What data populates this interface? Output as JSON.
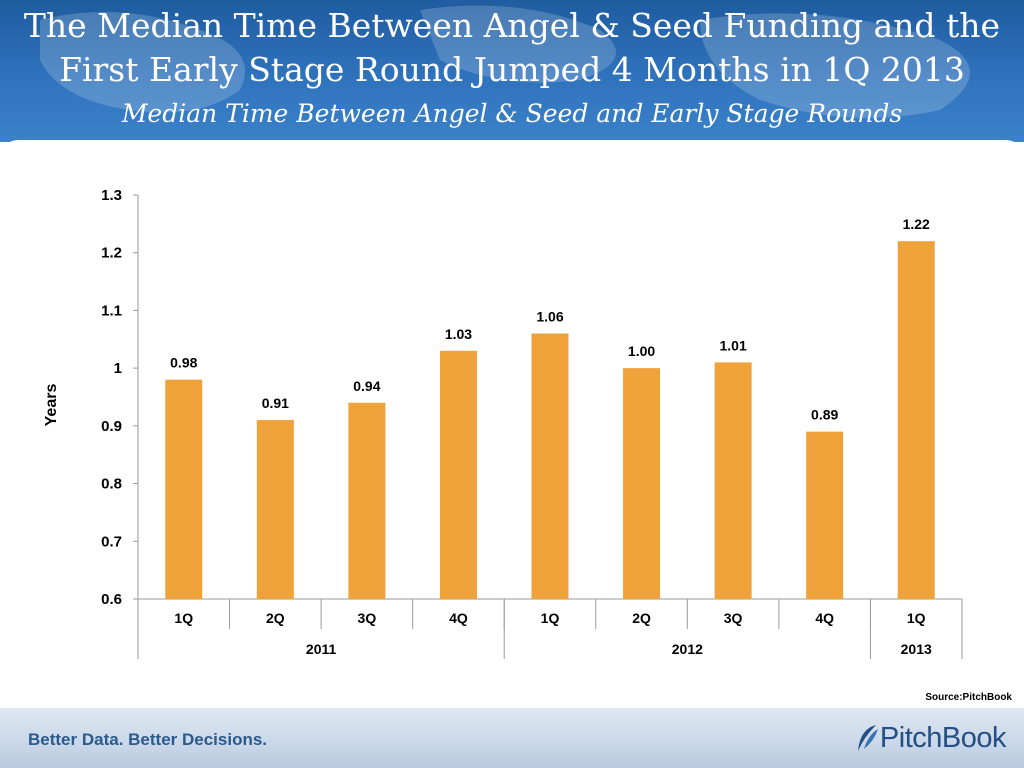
{
  "header": {
    "title_line1": "The Median Time Between Angel & Seed Funding and the",
    "title_line2": "First Early Stage Round Jumped 4 Months in 1Q 2013",
    "subtitle": "Median Time Between Angel & Seed and Early Stage Rounds"
  },
  "source": "Source:PitchBook",
  "footer": {
    "tagline": "Better Data. Better Decisions.",
    "logo_text": "PitchBook"
  },
  "colors": {
    "bar": "#f0a23a",
    "header": "#2f73bd"
  },
  "chart_data": {
    "type": "bar",
    "title": "Median Time Between Angel & Seed and Early Stage Rounds",
    "ylabel": "Years",
    "xlabel": "",
    "ylim": [
      0.6,
      1.3
    ],
    "yticks": [
      0.6,
      0.7,
      0.8,
      0.9,
      1,
      1.1,
      1.2,
      1.3
    ],
    "ytick_labels": [
      "0.6",
      "0.7",
      "0.8",
      "0.9",
      "1",
      "1.1",
      "1.2",
      "1.3"
    ],
    "categories": [
      "1Q",
      "2Q",
      "3Q",
      "4Q",
      "1Q",
      "2Q",
      "3Q",
      "4Q",
      "1Q"
    ],
    "groups": [
      {
        "label": "2011",
        "span": 4
      },
      {
        "label": "2012",
        "span": 4
      },
      {
        "label": "2013",
        "span": 1
      }
    ],
    "values": [
      0.98,
      0.91,
      0.94,
      1.03,
      1.06,
      1.0,
      1.01,
      0.89,
      1.22
    ],
    "data_labels": [
      "0.98",
      "0.91",
      "0.94",
      "1.03",
      "1.06",
      "1.00",
      "1.01",
      "0.89",
      "1.22"
    ],
    "grid": false
  }
}
